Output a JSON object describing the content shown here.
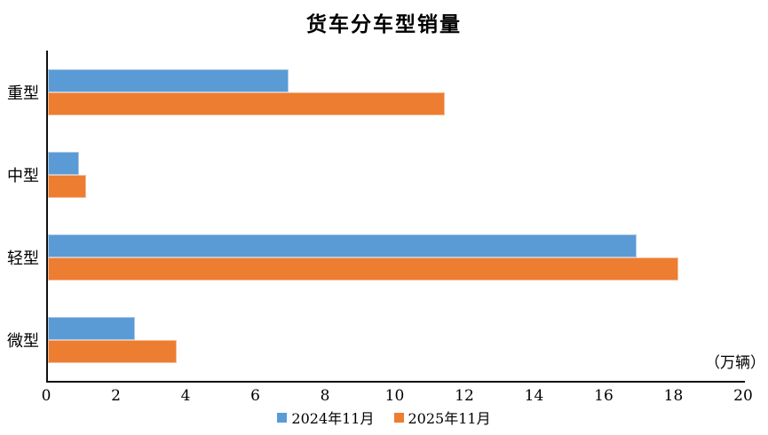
{
  "chart_data": {
    "type": "bar",
    "orientation": "horizontal",
    "title": "货车分车型销量",
    "unit_label": "（万辆）",
    "categories": [
      "重型",
      "中型",
      "轻型",
      "微型"
    ],
    "series": [
      {
        "name": "2024年11月",
        "color": "#5B9BD5",
        "border_color": "#AECBEA",
        "values": [
          6.9,
          0.9,
          16.9,
          2.5
        ]
      },
      {
        "name": "2025年11月",
        "color": "#ED7D31",
        "border_color": "#F6BE98",
        "values": [
          11.4,
          1.1,
          18.1,
          3.7
        ]
      }
    ],
    "xlabel": "",
    "ylabel": "",
    "xlim": [
      0,
      20
    ],
    "x_ticks": [
      0,
      2,
      4,
      6,
      8,
      10,
      12,
      14,
      16,
      18,
      20
    ],
    "grid": false,
    "legend_position": "bottom",
    "axis_color": "#111111"
  }
}
